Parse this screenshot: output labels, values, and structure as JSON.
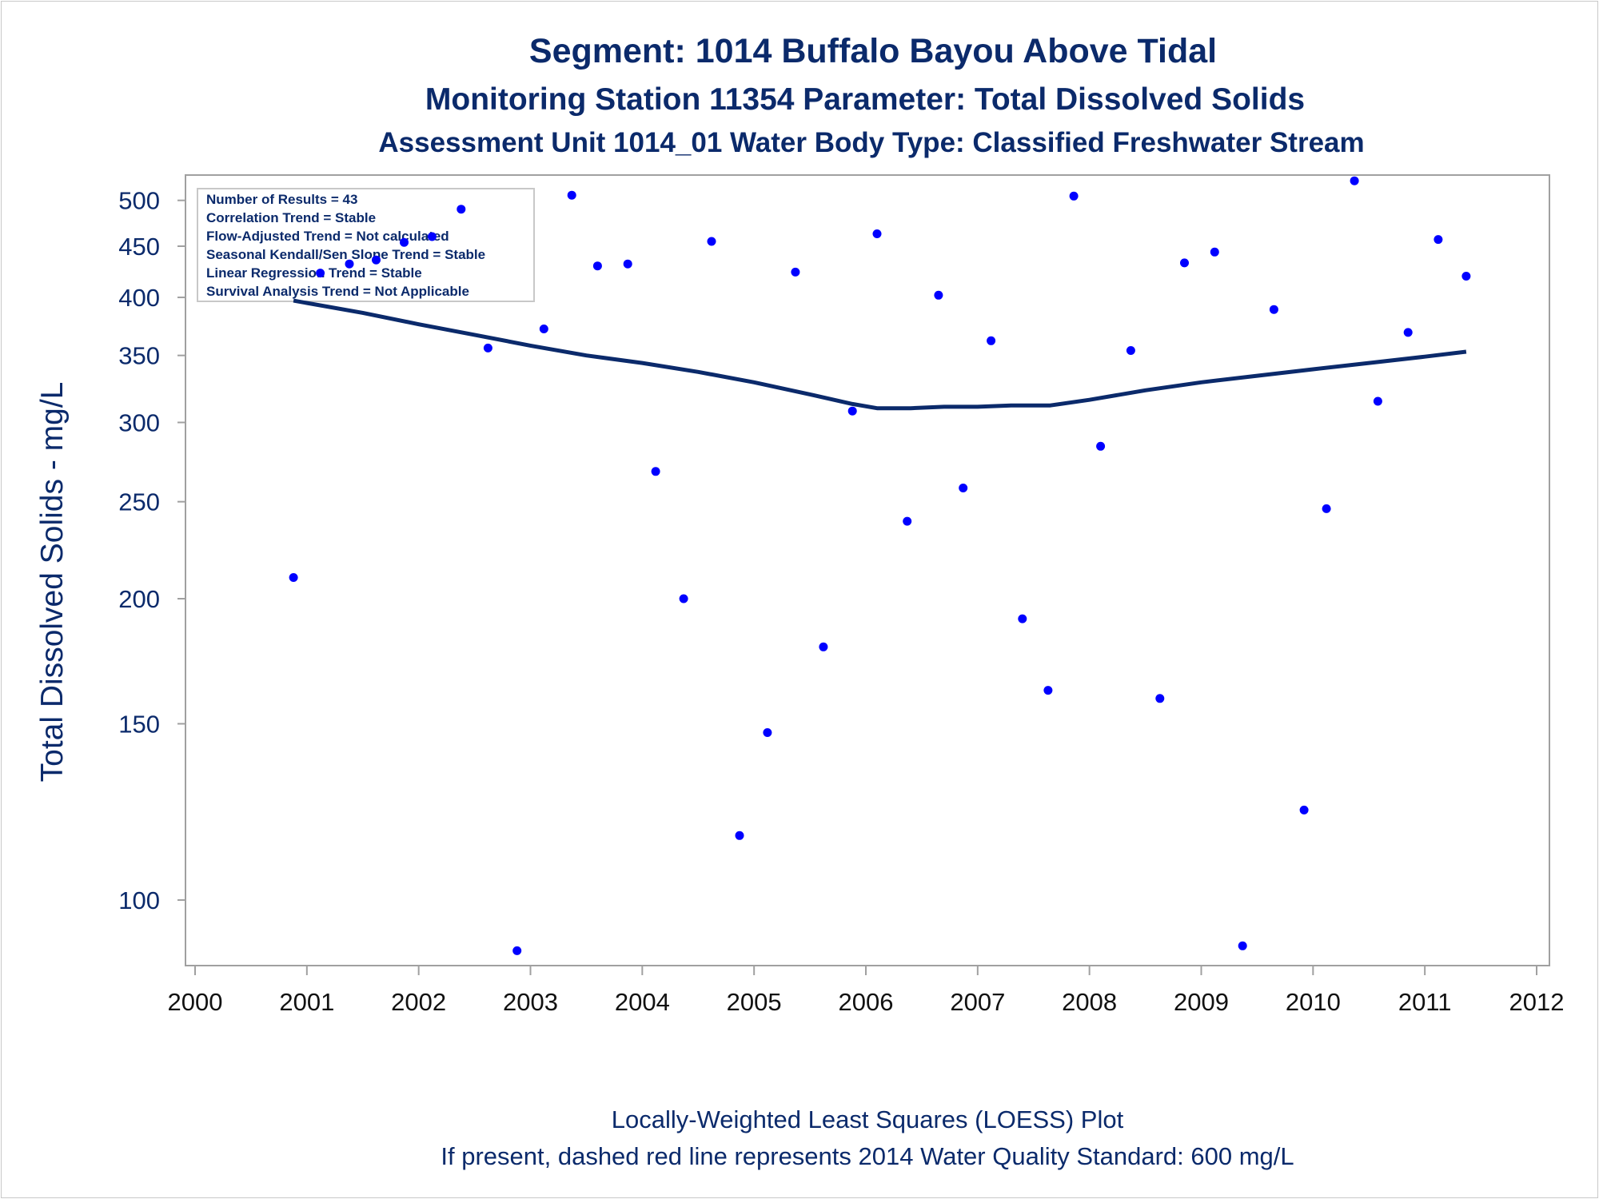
{
  "titles": {
    "line1": "Segment: 1014  Buffalo Bayou Above Tidal",
    "line2": "Monitoring Station 11354 Parameter: Total Dissolved Solids",
    "line3": "Assessment Unit 1014_01   Water Body Type: Classified Freshwater Stream"
  },
  "stats_box": [
    "Number of Results = 43",
    "Correlation Trend = Stable",
    "Flow-Adjusted Trend = Not calculated",
    "Seasonal Kendall/Sen Slope Trend = Stable",
    "Linear Regression Trend = Stable",
    "Survival Analysis Trend = Not Applicable"
  ],
  "footer": {
    "line1": "Locally-Weighted Least Squares (LOESS) Plot",
    "line2": "If present, dashed red line represents 2014 Water Quality Standard: 600   mg/L"
  },
  "colors": {
    "text": "#0b2a6b",
    "points": "#0000ff",
    "loess": "#0b2a6b",
    "frame": "#a0a0a0"
  },
  "chart_data": {
    "type": "scatter",
    "title": "Segment: 1014  Buffalo Bayou Above Tidal",
    "ylabel": "Total Dissolved Solids - mg/L",
    "xlabel": "",
    "y_scale": "log",
    "xlim": [
      2000,
      2012
    ],
    "ylim": [
      86,
      530
    ],
    "x_ticks": [
      2000,
      2001,
      2002,
      2003,
      2004,
      2005,
      2006,
      2007,
      2008,
      2009,
      2010,
      2011,
      2012
    ],
    "y_ticks": [
      100,
      150,
      200,
      250,
      300,
      350,
      400,
      450,
      500
    ],
    "grid": false,
    "series": [
      {
        "kind": "points",
        "x": [
          2000.88,
          2001.12,
          2001.38,
          2001.62,
          2001.87,
          2002.12,
          2002.38,
          2002.62,
          2002.88,
          2003.12,
          2003.37,
          2003.6,
          2003.87,
          2004.12,
          2004.37,
          2004.62,
          2004.87,
          2005.12,
          2005.37,
          2005.62,
          2005.88,
          2006.1,
          2006.37,
          2006.65,
          2006.87,
          2007.12,
          2007.4,
          2007.63,
          2007.86,
          2008.1,
          2008.37,
          2008.63,
          2008.85,
          2009.12,
          2009.37,
          2009.65,
          2009.92,
          2010.12,
          2010.37,
          2010.58,
          2010.85,
          2011.12,
          2011.37
        ],
        "y": [
          210,
          423,
          432,
          436,
          454,
          460,
          490,
          356,
          89,
          372,
          506,
          430,
          432,
          268,
          200,
          455,
          116,
          147,
          424,
          179,
          308,
          463,
          239,
          402,
          258,
          362,
          191,
          162,
          505,
          284,
          354,
          159,
          433,
          444,
          90,
          389,
          123,
          246,
          523,
          315,
          369,
          457,
          420
        ]
      },
      {
        "kind": "loess",
        "x": [
          2000.88,
          2001.5,
          2002.0,
          2002.5,
          2003.0,
          2003.5,
          2004.0,
          2004.5,
          2005.0,
          2005.5,
          2005.88,
          2006.1,
          2006.4,
          2006.7,
          2007.0,
          2007.3,
          2007.65,
          2008.0,
          2008.5,
          2009.0,
          2009.5,
          2010.0,
          2010.5,
          2011.0,
          2011.37
        ],
        "y": [
          397,
          386,
          376,
          367,
          358,
          350,
          344,
          337,
          329,
          320,
          313,
          310,
          310,
          311,
          311,
          312,
          312,
          316,
          323,
          329,
          334,
          339,
          344,
          349,
          353
        ]
      }
    ]
  }
}
